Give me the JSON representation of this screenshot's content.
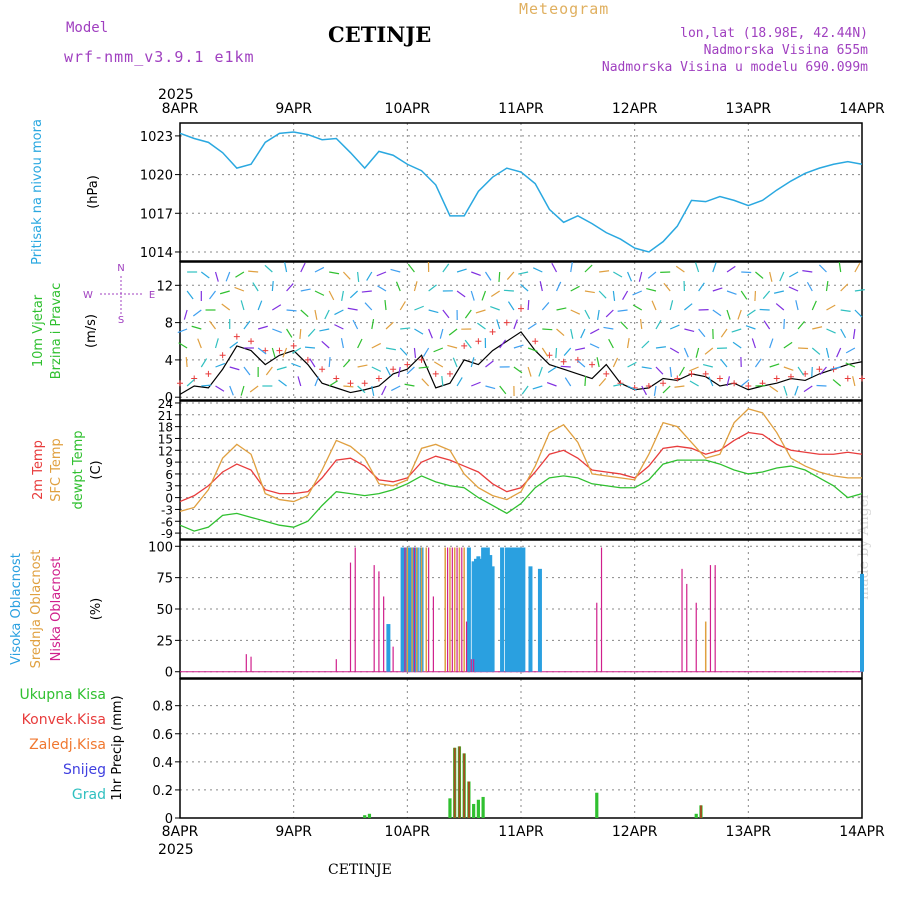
{
  "header": {
    "title": "CETINJE",
    "meteogram_label": "Meteogram",
    "model_label": "Model",
    "model_name": "wrf-nmm_v3.9.1 e1km",
    "lonlat": "lon,lat (18.98E, 42.44N)",
    "elevation": "Nadmorska Visina 655m",
    "model_elevation": "Nadmorska Visina u modelu 690.099m"
  },
  "footer": {
    "station": "CETINJE"
  },
  "watermark": "made by Angel",
  "time_axis": {
    "year": "2025",
    "days": [
      "8APR",
      "9APR",
      "10APR",
      "11APR",
      "12APR",
      "13APR",
      "14APR"
    ]
  },
  "colors": {
    "pressure": "#2aa8e0",
    "t2m": "#e83c3c",
    "sfc": "#e0a040",
    "dew": "#30c030",
    "high": "#2aa0e0",
    "mid": "#e0a040",
    "low": "#d0208c",
    "rain_total": "#30c030",
    "rain_conv": "#e83c3c",
    "rain_frozen": "#f07830",
    "snow": "#4040e0",
    "hail": "#30c0c0"
  },
  "legends": {
    "pressure": [
      "Pritisak na nivou mora"
    ],
    "pressure_unit": "(hPa)",
    "wind": [
      "10m Vjetar",
      "Brzina i Pravac"
    ],
    "wind_unit": "(m/s)",
    "temp": [
      "2m Temp",
      "SFC Temp",
      "dewpt Temp"
    ],
    "temp_unit": "(C)",
    "cloud": [
      "Visoka Oblacnost",
      "Srednja Oblacnost",
      "Niska Oblacnost"
    ],
    "cloud_unit": "(%)",
    "precip": [
      "Ukupna Kisa",
      "Konvek.Kisa",
      "Zaledj.Kisa",
      "Snijeg",
      "Grad"
    ],
    "precip_unit": "1hr Precip (mm)",
    "compass": {
      "n": "N",
      "s": "S",
      "e": "E",
      "w": "W"
    }
  },
  "chart_data": [
    {
      "type": "line",
      "panel": "pressure",
      "ylabel": "(hPa)",
      "ylim": [
        1013.3,
        1024.0
      ],
      "yticks": [
        1014,
        1017,
        1020,
        1023
      ],
      "xlim": [
        0,
        144
      ],
      "series": [
        {
          "name": "Pritisak na nivou mora",
          "x": [
            0,
            3,
            6,
            9,
            12,
            15,
            18,
            21,
            24,
            27,
            30,
            33,
            36,
            39,
            42,
            45,
            48,
            51,
            54,
            57,
            60,
            63,
            66,
            69,
            72,
            75,
            78,
            81,
            84,
            87,
            90,
            93,
            96,
            99,
            102,
            105,
            108,
            111,
            114,
            117,
            120,
            123,
            126,
            129,
            132,
            135,
            138,
            141,
            144
          ],
          "values": [
            1023.2,
            1022.8,
            1022.5,
            1021.7,
            1020.5,
            1020.8,
            1022.5,
            1023.2,
            1023.3,
            1023.1,
            1022.7,
            1022.8,
            1021.7,
            1020.5,
            1021.8,
            1021.5,
            1020.8,
            1020.3,
            1019.2,
            1016.8,
            1016.8,
            1018.7,
            1019.8,
            1020.5,
            1020.2,
            1019.3,
            1017.3,
            1016.3,
            1016.8,
            1016.2,
            1015.5,
            1015.0,
            1014.3,
            1014.0,
            1014.8,
            1016.0,
            1018.0,
            1017.9,
            1018.3,
            1018.0,
            1017.6,
            1018.0,
            1018.8,
            1019.5,
            1020.1,
            1020.5,
            1020.8,
            1021.0,
            1020.8
          ]
        }
      ]
    },
    {
      "type": "line",
      "panel": "wind",
      "ylabel": "(m/s)",
      "ylim": [
        -0.3,
        14.5
      ],
      "yticks": [
        0,
        4,
        8,
        12
      ],
      "xlim": [
        0,
        144
      ],
      "series": [
        {
          "name": "speed",
          "x": [
            0,
            3,
            6,
            9,
            12,
            15,
            18,
            21,
            24,
            27,
            30,
            33,
            36,
            39,
            42,
            45,
            48,
            51,
            54,
            57,
            60,
            63,
            66,
            69,
            72,
            75,
            78,
            81,
            84,
            87,
            90,
            93,
            96,
            99,
            102,
            105,
            108,
            111,
            114,
            117,
            120,
            123,
            126,
            129,
            132,
            135,
            138,
            141,
            144
          ],
          "values": [
            0.3,
            1.2,
            1.0,
            3.0,
            5.5,
            5.0,
            3.5,
            4.5,
            5.0,
            3.5,
            1.5,
            1.0,
            0.5,
            0.8,
            1.2,
            2.5,
            3.0,
            4.5,
            1.0,
            1.5,
            4.0,
            3.5,
            5.0,
            6.0,
            7.0,
            5.0,
            3.5,
            3.0,
            2.5,
            2.0,
            3.5,
            1.5,
            0.8,
            1.0,
            2.0,
            1.8,
            2.5,
            2.2,
            1.2,
            1.5,
            0.8,
            1.2,
            1.5,
            2.0,
            1.8,
            2.5,
            3.0,
            3.5,
            3.8
          ]
        },
        {
          "name": "gust",
          "x": [
            0,
            3,
            6,
            9,
            12,
            15,
            18,
            21,
            24,
            27,
            30,
            33,
            36,
            39,
            42,
            45,
            48,
            51,
            54,
            57,
            60,
            63,
            66,
            69,
            72,
            75,
            78,
            81,
            84,
            87,
            90,
            93,
            96,
            99,
            102,
            105,
            108,
            111,
            114,
            117,
            120,
            123,
            126,
            129,
            132,
            135,
            138,
            141,
            144
          ],
          "values": [
            1.5,
            2.0,
            2.5,
            4.5,
            6.5,
            6.0,
            5.0,
            5.0,
            5.5,
            4.0,
            3.0,
            2.0,
            1.5,
            1.5,
            2.0,
            3.0,
            3.5,
            4.0,
            2.5,
            2.5,
            5.5,
            6.0,
            7.0,
            8.0,
            9.5,
            6.0,
            4.5,
            3.8,
            4.0,
            3.5,
            2.5,
            1.5,
            1.0,
            1.2,
            1.5,
            2.0,
            2.5,
            2.5,
            2.0,
            1.5,
            1.2,
            1.5,
            2.0,
            2.2,
            2.5,
            3.0,
            3.0,
            2.0,
            2.0
          ]
        }
      ]
    },
    {
      "type": "line",
      "panel": "temperature",
      "ylabel": "(C)",
      "ylim": [
        -10.5,
        24.5
      ],
      "yticks": [
        -9,
        -6,
        -3,
        0,
        3,
        6,
        9,
        12,
        15,
        18,
        21,
        24
      ],
      "xlim": [
        0,
        144
      ],
      "series": [
        {
          "name": "2m Temp",
          "x": [
            0,
            3,
            6,
            9,
            12,
            15,
            18,
            21,
            24,
            27,
            30,
            33,
            36,
            39,
            42,
            45,
            48,
            51,
            54,
            57,
            60,
            63,
            66,
            69,
            72,
            75,
            78,
            81,
            84,
            87,
            90,
            93,
            96,
            99,
            102,
            105,
            108,
            111,
            114,
            117,
            120,
            123,
            126,
            129,
            132,
            135,
            138,
            141,
            144
          ],
          "values": [
            -1.0,
            0.5,
            3.0,
            6.5,
            8.5,
            7.0,
            2.0,
            1.0,
            1.0,
            1.5,
            5.0,
            9.5,
            10.0,
            8.0,
            4.5,
            4.0,
            5.0,
            9.0,
            10.5,
            9.5,
            8.0,
            6.5,
            3.5,
            1.5,
            2.5,
            6.5,
            11.0,
            12.0,
            10.0,
            7.0,
            6.5,
            6.0,
            5.0,
            8.0,
            12.5,
            13.0,
            12.5,
            11.0,
            12.0,
            14.5,
            16.5,
            16.0,
            13.5,
            12.0,
            11.5,
            11.0,
            11.0,
            11.5,
            11.0
          ]
        },
        {
          "name": "SFC Temp",
          "x": [
            0,
            3,
            6,
            9,
            12,
            15,
            18,
            21,
            24,
            27,
            30,
            33,
            36,
            39,
            42,
            45,
            48,
            51,
            54,
            57,
            60,
            63,
            66,
            69,
            72,
            75,
            78,
            81,
            84,
            87,
            90,
            93,
            96,
            99,
            102,
            105,
            108,
            111,
            114,
            117,
            120,
            123,
            126,
            129,
            132,
            135,
            138,
            141,
            144
          ],
          "values": [
            -3.5,
            -2.5,
            2.0,
            10.0,
            13.5,
            11.0,
            1.0,
            -0.5,
            -1.0,
            0.5,
            7.0,
            14.5,
            13.0,
            10.0,
            3.5,
            3.0,
            4.5,
            12.5,
            13.5,
            12.0,
            6.0,
            2.5,
            0.5,
            -0.5,
            1.5,
            8.0,
            16.5,
            18.5,
            14.0,
            6.0,
            5.5,
            5.0,
            4.5,
            11.0,
            19.0,
            18.0,
            14.0,
            10.0,
            11.0,
            19.0,
            22.5,
            21.5,
            16.5,
            10.0,
            8.0,
            6.5,
            5.5,
            5.0,
            5.0
          ]
        },
        {
          "name": "dewpt Temp",
          "x": [
            0,
            3,
            6,
            9,
            12,
            15,
            18,
            21,
            24,
            27,
            30,
            33,
            36,
            39,
            42,
            45,
            48,
            51,
            54,
            57,
            60,
            63,
            66,
            69,
            72,
            75,
            78,
            81,
            84,
            87,
            90,
            93,
            96,
            99,
            102,
            105,
            108,
            111,
            114,
            117,
            120,
            123,
            126,
            129,
            132,
            135,
            138,
            141,
            144
          ],
          "values": [
            -7.0,
            -8.5,
            -7.5,
            -4.5,
            -4.0,
            -5.0,
            -6.0,
            -7.0,
            -7.5,
            -6.0,
            -2.0,
            1.5,
            1.0,
            0.5,
            1.0,
            2.0,
            3.5,
            5.5,
            4.0,
            3.0,
            2.5,
            0.0,
            -2.0,
            -4.0,
            -1.5,
            2.5,
            5.0,
            5.5,
            5.0,
            3.5,
            3.0,
            2.5,
            2.5,
            4.5,
            8.5,
            9.5,
            9.5,
            9.5,
            8.5,
            7.0,
            6.0,
            6.5,
            7.5,
            8.0,
            7.0,
            5.0,
            3.0,
            0.0,
            1.0
          ]
        }
      ]
    },
    {
      "type": "bar",
      "panel": "cloud",
      "ylabel": "(%)",
      "ylim": [
        -5,
        105
      ],
      "yticks": [
        0,
        25,
        50,
        75,
        100
      ],
      "xlim": [
        0,
        144
      ],
      "series": [
        {
          "name": "Visoka Oblacnost",
          "x": [
            44,
            47,
            48,
            48.5,
            49,
            49.5,
            50,
            51,
            61,
            62,
            62.5,
            63,
            63.5,
            64,
            64.5,
            65,
            65.5,
            66,
            68,
            69,
            69.5,
            70,
            70.5,
            71,
            71.5,
            72,
            72.5,
            74,
            76,
            144
          ],
          "values": [
            38,
            99,
            99,
            99,
            99,
            99,
            99,
            99,
            99,
            88,
            90,
            92,
            90,
            99,
            99,
            99,
            93,
            84,
            99,
            99,
            99,
            99,
            99,
            99,
            99,
            99,
            99,
            84,
            82,
            78
          ]
        },
        {
          "name": "Srednja Oblacnost",
          "x": [
            48,
            49,
            50,
            51,
            52,
            56,
            57,
            58,
            59,
            60,
            111
          ],
          "values": [
            99,
            99,
            99,
            99,
            99,
            99,
            99,
            99,
            99,
            99,
            40
          ]
        },
        {
          "name": "Niska Oblacnost",
          "x": [
            14,
            15,
            33,
            36,
            37,
            41,
            42,
            43,
            45,
            47.5,
            49.5,
            52.5,
            53.5,
            56.5,
            57.5,
            58.5,
            59.5,
            60.5,
            61.5,
            62,
            88,
            89,
            106,
            107,
            109,
            112,
            113
          ],
          "values": [
            14,
            12,
            10,
            87,
            99,
            85,
            80,
            60,
            20,
            99,
            99,
            99,
            60,
            99,
            99,
            99,
            99,
            40,
            10,
            10,
            55,
            99,
            82,
            70,
            55,
            85,
            85
          ]
        }
      ]
    },
    {
      "type": "bar",
      "panel": "precip",
      "ylabel": "1hr Precip (mm)",
      "ylim": [
        0,
        0.99
      ],
      "yticks": [
        0,
        0.2,
        0.4,
        0.6,
        0.8
      ],
      "xlim": [
        0,
        144
      ],
      "series": [
        {
          "name": "Ukupna Kisa",
          "x": [
            39,
            40,
            57,
            58,
            59,
            60,
            61,
            62,
            63,
            64,
            88,
            109,
            110
          ],
          "values": [
            0.02,
            0.03,
            0.14,
            0.5,
            0.51,
            0.46,
            0.26,
            0.1,
            0.13,
            0.15,
            0.18,
            0.03,
            0.09
          ]
        },
        {
          "name": "Konvek.Kisa",
          "x": [
            58,
            59,
            60,
            61,
            110
          ],
          "values": [
            0.5,
            0.51,
            0.46,
            0.26,
            0.09
          ]
        }
      ]
    }
  ]
}
